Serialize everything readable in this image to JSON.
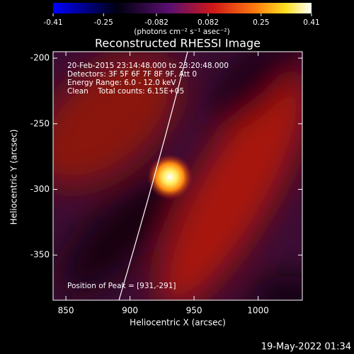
{
  "chart_data": {
    "type": "image",
    "title": "Reconstructed RHESSI Image",
    "x_label": "Heliocentric X (arcsec)",
    "y_label": "Heliocentric Y (arcsec)",
    "xlim": [
      840,
      1034.5
    ],
    "xticks": [
      850,
      900,
      950,
      1000
    ],
    "ylim": [
      -384.4,
      -195.1
    ],
    "yticks": [
      -200,
      -250,
      -300,
      -350
    ],
    "colorbar": {
      "lim": [
        -0.41,
        0.41
      ],
      "ticks": [
        -0.41,
        -0.25,
        -0.082,
        0.082,
        0.25,
        0.41
      ],
      "label": "(photons cm⁻² s⁻¹ asec⁻²)"
    },
    "annotations": [
      "20-Feb-2015 23:14:48.000 to 23:20:48.000",
      "Detectors: 3F 5F 6F 7F 8F 9F, Att 0",
      "Energy Range: 6.0 - 12.0 keV",
      "Clean    Total counts: 6.15E+05"
    ],
    "peak_label": "Position of Peak = [931,-291]",
    "timestamp": "19-May-2022 01:34"
  }
}
